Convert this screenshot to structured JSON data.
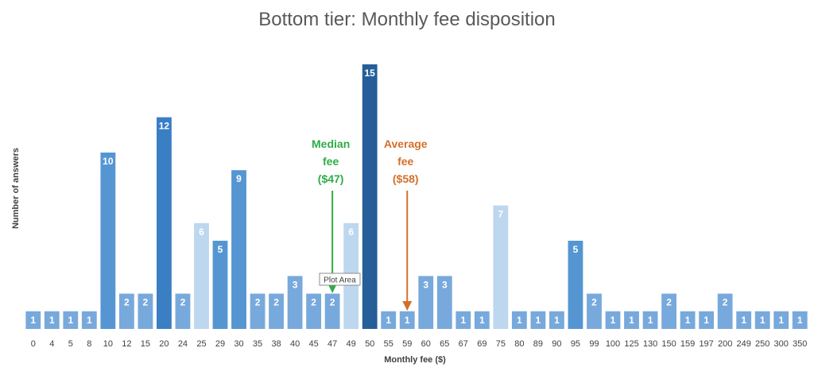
{
  "chart_data": {
    "type": "bar",
    "title": "Bottom tier: Monthly fee disposition",
    "xlabel": "Monthly fee ($)",
    "ylabel": "Number of answers",
    "ylim": [
      0,
      15
    ],
    "categories": [
      "0",
      "4",
      "5",
      "8",
      "10",
      "12",
      "15",
      "20",
      "24",
      "25",
      "29",
      "30",
      "35",
      "38",
      "40",
      "45",
      "47",
      "49",
      "50",
      "55",
      "59",
      "60",
      "65",
      "67",
      "69",
      "75",
      "80",
      "89",
      "90",
      "95",
      "99",
      "100",
      "125",
      "130",
      "150",
      "159",
      "197",
      "200",
      "249",
      "250",
      "300",
      "350"
    ],
    "values": [
      1,
      1,
      1,
      1,
      10,
      2,
      2,
      12,
      2,
      6,
      5,
      9,
      2,
      2,
      3,
      2,
      2,
      6,
      15,
      1,
      1,
      3,
      3,
      1,
      1,
      7,
      1,
      1,
      1,
      5,
      2,
      1,
      1,
      1,
      2,
      1,
      1,
      2,
      1,
      1,
      1,
      1
    ],
    "colors": {
      "very_light": "#bdd7ee",
      "light": "#78a9dc",
      "medium": "#5596d2",
      "dark": "#3a7ec4",
      "darkest": "#255e98"
    },
    "annotations": {
      "median": {
        "lines": [
          "Median",
          "fee",
          "($47)"
        ],
        "category": "47",
        "color": "#2eab47"
      },
      "average": {
        "lines": [
          "Average",
          "fee",
          "($58)"
        ],
        "category": "59",
        "color": "#d46f2a"
      }
    },
    "tooltip": "Plot Area"
  }
}
